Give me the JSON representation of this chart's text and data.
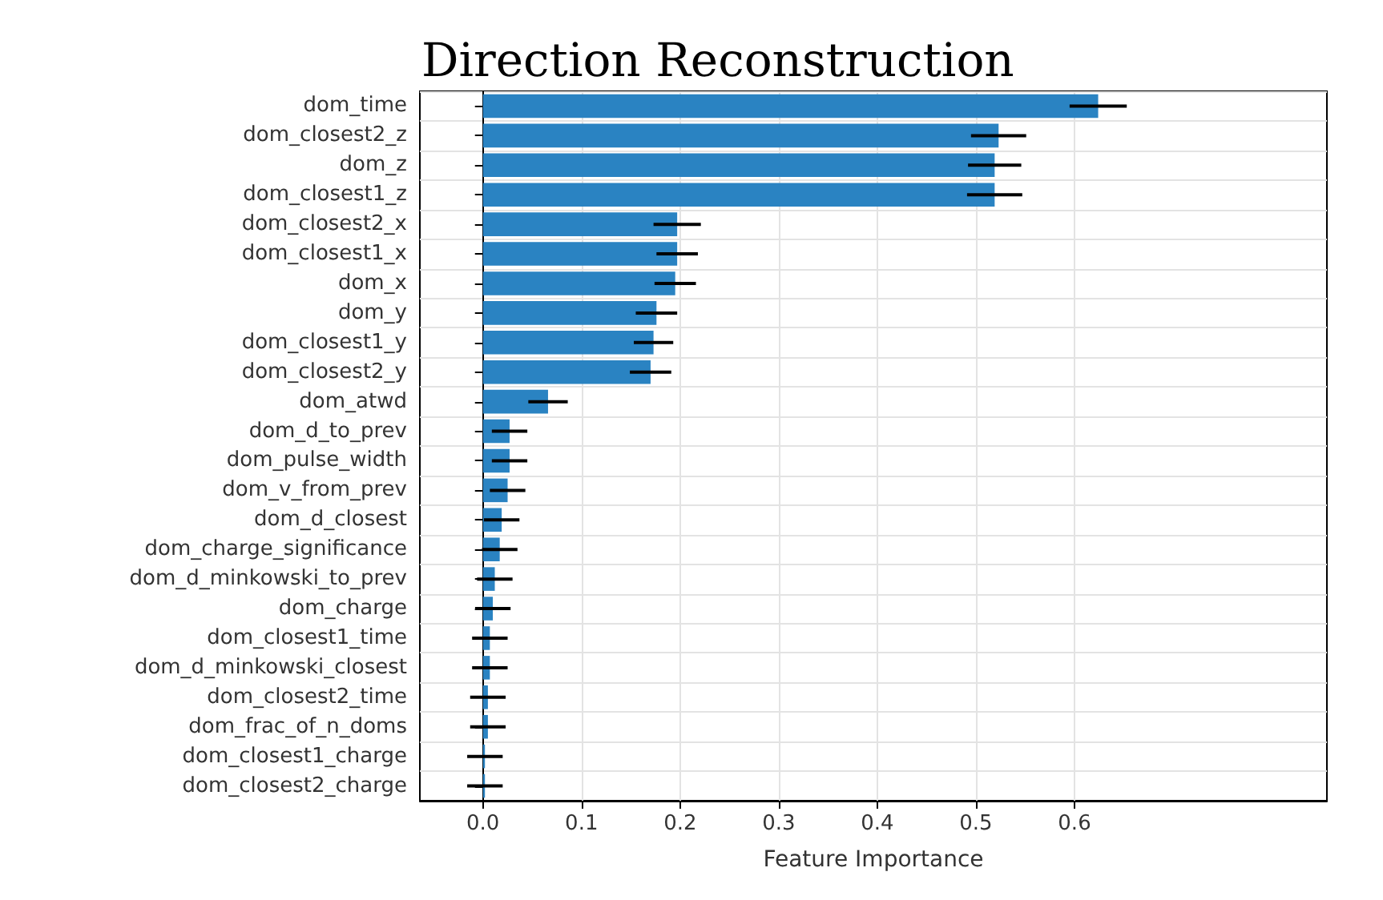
{
  "chart_data": {
    "type": "bar",
    "orientation": "horizontal",
    "title": "Direction Reconstruction",
    "xlabel": "Feature Importance",
    "categories": [
      "dom_time",
      "dom_closest2_z",
      "dom_z",
      "dom_closest1_z",
      "dom_closest2_x",
      "dom_closest1_x",
      "dom_x",
      "dom_y",
      "dom_closest1_y",
      "dom_closest2_y",
      "dom_atwd",
      "dom_d_to_prev",
      "dom_pulse_width",
      "dom_v_from_prev",
      "dom_d_closest",
      "dom_charge_significance",
      "dom_d_minkowski_to_prev",
      "dom_charge",
      "dom_closest1_time",
      "dom_d_minkowski_closest",
      "dom_closest2_time",
      "dom_frac_of_n_doms",
      "dom_closest1_charge",
      "dom_closest2_charge"
    ],
    "values": [
      0.624,
      0.523,
      0.519,
      0.519,
      0.197,
      0.197,
      0.195,
      0.176,
      0.173,
      0.17,
      0.066,
      0.027,
      0.027,
      0.025,
      0.019,
      0.017,
      0.012,
      0.01,
      0.007,
      0.007,
      0.005,
      0.005,
      0.002,
      0.002
    ],
    "errors": [
      0.029,
      0.028,
      0.027,
      0.028,
      0.024,
      0.021,
      0.021,
      0.021,
      0.02,
      0.021,
      0.02,
      0.018,
      0.018,
      0.018,
      0.018,
      0.018,
      0.018,
      0.018,
      0.018,
      0.018,
      0.018,
      0.018,
      0.018,
      0.018
    ],
    "color": "#2a83c2",
    "xlim": [
      -0.064,
      0.856
    ],
    "xticks": [
      {
        "value": 0,
        "label": "0.0"
      },
      {
        "value": 0.1,
        "label": "0.1"
      },
      {
        "value": 0.2,
        "label": "0.2"
      },
      {
        "value": 0.3,
        "label": "0.3"
      },
      {
        "value": 0.4,
        "label": "0.4"
      },
      {
        "value": 0.5,
        "label": "0.5"
      },
      {
        "value": 0.6,
        "label": "0.6"
      }
    ],
    "grid": true
  }
}
